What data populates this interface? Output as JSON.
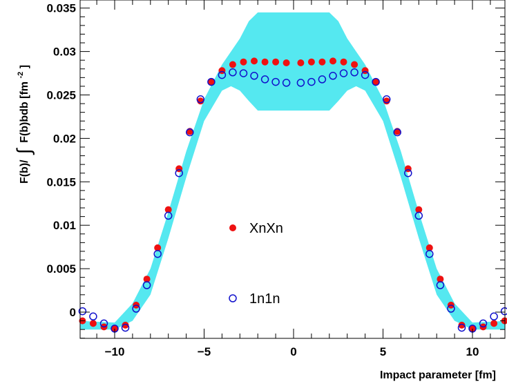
{
  "chart_data": {
    "type": "scatter",
    "xlabel": "Impact parameter [fm]",
    "ylabel_parts": {
      "prefix": "F(b)/",
      "integral": "∫",
      "main": "F(b)bdb [fm",
      "superscript": "-2",
      "suffix": "]"
    },
    "xlim": [
      -12,
      12
    ],
    "ylim": [
      -0.004,
      0.036
    ],
    "x_ticks": [
      -10,
      -5,
      0,
      5,
      10
    ],
    "x_tick_labels": [
      "−10",
      "−5",
      "0",
      "5",
      "10"
    ],
    "y_ticks": [
      0,
      0.005,
      0.01,
      0.015,
      0.02,
      0.025,
      0.03,
      0.035
    ],
    "y_tick_labels": [
      "0",
      "0.005",
      "0.01",
      "0.015",
      "0.02",
      "0.025",
      "0.03",
      "0.035"
    ],
    "grid": false,
    "legend_position": "center",
    "colors": {
      "xnxn": "#ee1111",
      "one_n": "#1111cc",
      "band": "#55e8f0"
    },
    "band": {
      "name": "",
      "x": [
        -12,
        -10,
        -9,
        -8,
        -7,
        -6,
        -5,
        -4,
        -3.5,
        -3,
        -2.5,
        -2,
        -1,
        0,
        1,
        2,
        2.5,
        3,
        3.5,
        4,
        5,
        6,
        7,
        8,
        9,
        10,
        12
      ],
      "lower": [
        -0.002,
        -0.002,
        -0.001,
        0.002,
        0.0085,
        0.0155,
        0.022,
        0.0255,
        0.026,
        0.0255,
        0.0243,
        0.0232,
        0.0232,
        0.0232,
        0.0232,
        0.0232,
        0.0243,
        0.0255,
        0.026,
        0.0255,
        0.022,
        0.0155,
        0.0085,
        0.002,
        -0.001,
        -0.002,
        -0.002
      ],
      "upper": [
        -0.001,
        -0.0012,
        0.001,
        0.005,
        0.0115,
        0.0185,
        0.0245,
        0.0285,
        0.03,
        0.0315,
        0.0335,
        0.0345,
        0.0345,
        0.0345,
        0.0345,
        0.0345,
        0.0335,
        0.0315,
        0.03,
        0.0285,
        0.0245,
        0.0185,
        0.0115,
        0.005,
        0.001,
        -0.0012,
        -0.001
      ]
    },
    "series": [
      {
        "name": "XnXn",
        "marker": "filled-circle",
        "x": [
          -11.8,
          -11.2,
          -10.6,
          -10.0,
          -9.4,
          -8.8,
          -8.2,
          -7.6,
          -7.0,
          -6.4,
          -5.8,
          -5.2,
          -4.6,
          -4.0,
          -3.4,
          -2.8,
          -2.2,
          -1.6,
          -1.0,
          -0.4,
          0.4,
          1.0,
          1.6,
          2.2,
          2.8,
          3.4,
          4.0,
          4.6,
          5.2,
          5.8,
          6.4,
          7.0,
          7.6,
          8.2,
          8.8,
          9.4,
          10.0,
          10.6,
          11.2,
          11.8
        ],
        "y": [
          -0.001,
          -0.0013,
          -0.0017,
          -0.0019,
          -0.0015,
          0.0008,
          0.0038,
          0.0074,
          0.0118,
          0.0165,
          0.0208,
          0.0243,
          0.0265,
          0.0278,
          0.0285,
          0.0288,
          0.0289,
          0.0288,
          0.0288,
          0.0287,
          0.0287,
          0.0288,
          0.0288,
          0.0289,
          0.0288,
          0.0285,
          0.0278,
          0.0265,
          0.0243,
          0.0208,
          0.0165,
          0.0118,
          0.0074,
          0.0038,
          0.0008,
          -0.0015,
          -0.0019,
          -0.0017,
          -0.0013,
          -0.001
        ]
      },
      {
        "name": "1n1n",
        "marker": "open-circle",
        "x": [
          -11.8,
          -11.2,
          -10.6,
          -10.0,
          -9.4,
          -8.8,
          -8.2,
          -7.6,
          -7.0,
          -6.4,
          -5.8,
          -5.2,
          -4.6,
          -4.0,
          -3.4,
          -2.8,
          -2.2,
          -1.6,
          -1.0,
          -0.4,
          0.4,
          1.0,
          1.6,
          2.2,
          2.8,
          3.4,
          4.0,
          4.6,
          5.2,
          5.8,
          6.4,
          7.0,
          7.6,
          8.2,
          8.8,
          9.4,
          10.0,
          10.6,
          11.2,
          11.8
        ],
        "y": [
          0.0001,
          -0.0005,
          -0.0013,
          -0.0019,
          -0.0018,
          0.0004,
          0.0031,
          0.0067,
          0.0111,
          0.016,
          0.0207,
          0.0245,
          0.0265,
          0.0273,
          0.0276,
          0.0275,
          0.0272,
          0.0268,
          0.0265,
          0.0264,
          0.0264,
          0.0265,
          0.0268,
          0.0272,
          0.0275,
          0.0276,
          0.0273,
          0.0265,
          0.0245,
          0.0207,
          0.016,
          0.0111,
          0.0067,
          0.0031,
          0.0004,
          -0.0018,
          -0.0019,
          -0.0013,
          -0.0005,
          0.0001
        ]
      }
    ],
    "legend": [
      {
        "label": "XnXn",
        "marker": "filled-circle"
      },
      {
        "label": "1n1n",
        "marker": "open-circle"
      }
    ]
  }
}
